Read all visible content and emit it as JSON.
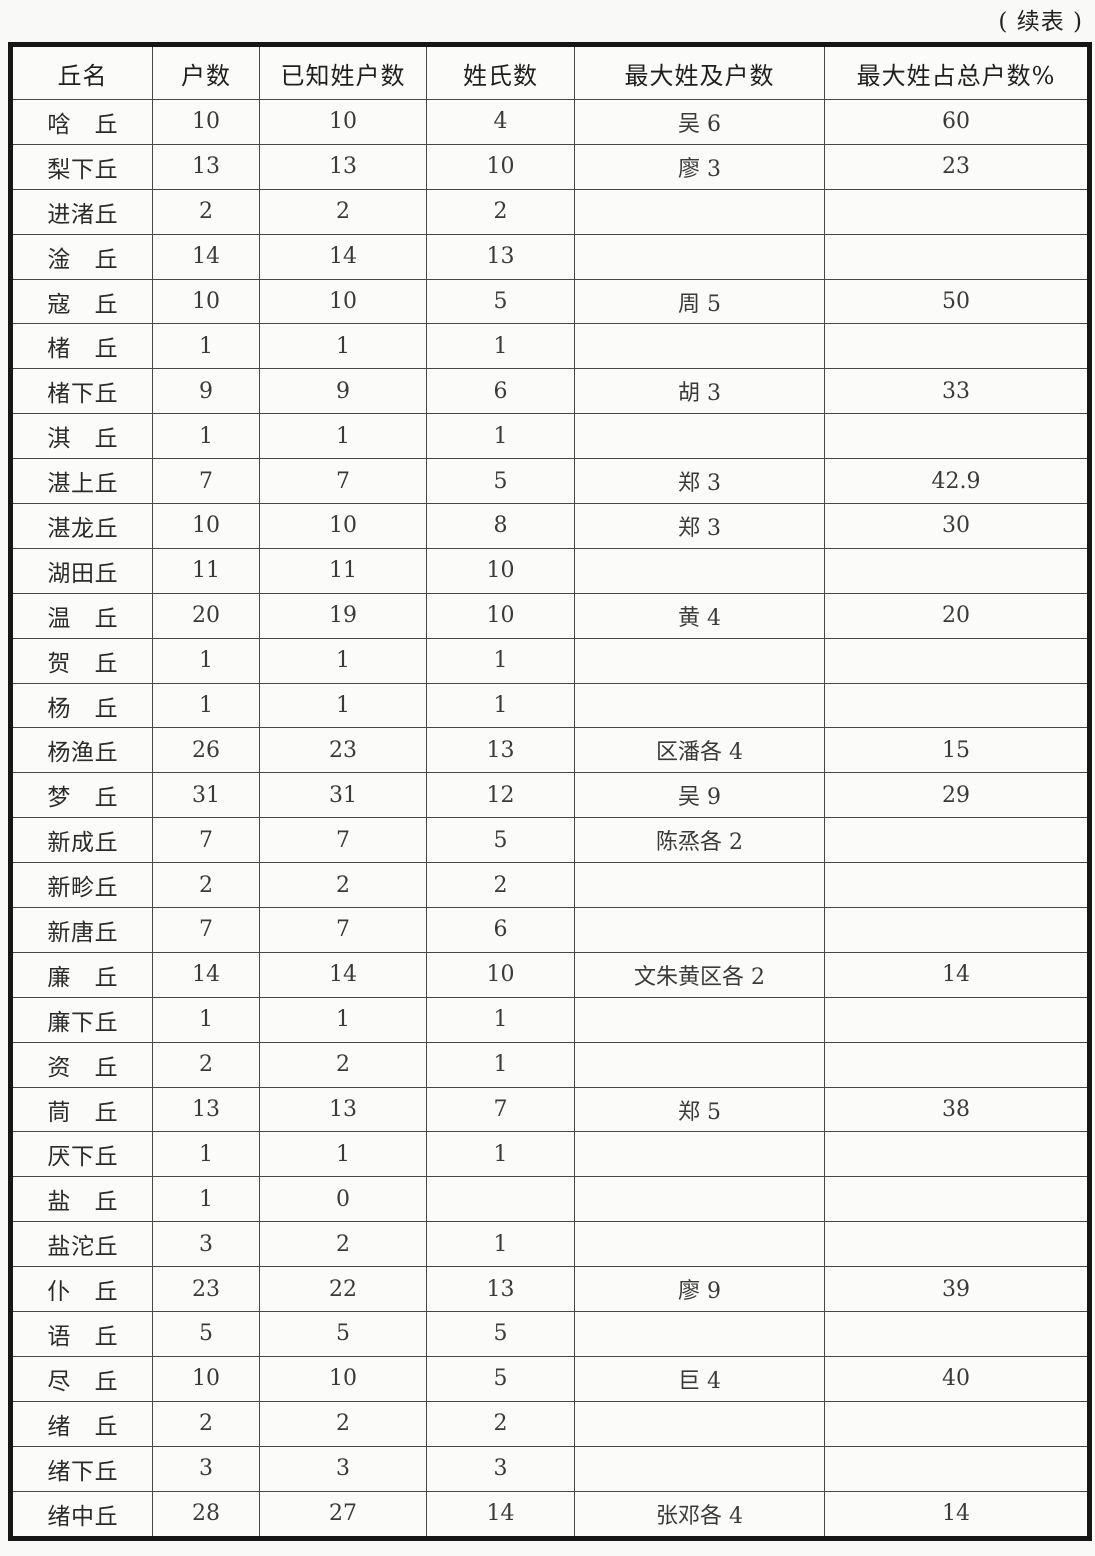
{
  "page": {
    "continuation_label": "( 续表 )"
  },
  "table": {
    "columns": [
      "丘名",
      "户数",
      "已知姓户数",
      "姓氏数",
      "最大姓及户数",
      "最大姓占总户数%"
    ],
    "rows": [
      [
        "唅丘",
        "10",
        "10",
        "4",
        "吴 6",
        "60"
      ],
      [
        "梨下丘",
        "13",
        "13",
        "10",
        "廖 3",
        "23"
      ],
      [
        "进渚丘",
        "2",
        "2",
        "2",
        "",
        ""
      ],
      [
        "淦丘",
        "14",
        "14",
        "13",
        "",
        ""
      ],
      [
        "寇丘",
        "10",
        "10",
        "5",
        "周 5",
        "50"
      ],
      [
        "楮丘",
        "1",
        "1",
        "1",
        "",
        ""
      ],
      [
        "楮下丘",
        "9",
        "9",
        "6",
        "胡 3",
        "33"
      ],
      [
        "淇丘",
        "1",
        "1",
        "1",
        "",
        ""
      ],
      [
        "湛上丘",
        "7",
        "7",
        "5",
        "郑 3",
        "42.9"
      ],
      [
        "湛龙丘",
        "10",
        "10",
        "8",
        "郑 3",
        "30"
      ],
      [
        "湖田丘",
        "11",
        "11",
        "10",
        "",
        ""
      ],
      [
        "温丘",
        "20",
        "19",
        "10",
        "黄 4",
        "20"
      ],
      [
        "贺丘",
        "1",
        "1",
        "1",
        "",
        ""
      ],
      [
        "杨丘",
        "1",
        "1",
        "1",
        "",
        ""
      ],
      [
        "杨渔丘",
        "26",
        "23",
        "13",
        "区潘各 4",
        "15"
      ],
      [
        "梦丘",
        "31",
        "31",
        "12",
        "吴 9",
        "29"
      ],
      [
        "新成丘",
        "7",
        "7",
        "5",
        "陈烝各 2",
        ""
      ],
      [
        "新畛丘",
        "2",
        "2",
        "2",
        "",
        ""
      ],
      [
        "新唐丘",
        "7",
        "7",
        "6",
        "",
        ""
      ],
      [
        "廉丘",
        "14",
        "14",
        "10",
        "文朱黄区各 2",
        "14"
      ],
      [
        "廉下丘",
        "1",
        "1",
        "1",
        "",
        ""
      ],
      [
        "资丘",
        "2",
        "2",
        "1",
        "",
        ""
      ],
      [
        "茼丘",
        "13",
        "13",
        "7",
        "郑 5",
        "38"
      ],
      [
        "厌下丘",
        "1",
        "1",
        "1",
        "",
        ""
      ],
      [
        "盐丘",
        "1",
        "0",
        "",
        "",
        ""
      ],
      [
        "盐沱丘",
        "3",
        "2",
        "1",
        "",
        ""
      ],
      [
        "仆丘",
        "23",
        "22",
        "13",
        "廖 9",
        "39"
      ],
      [
        "语丘",
        "5",
        "5",
        "5",
        "",
        ""
      ],
      [
        "尽丘",
        "10",
        "10",
        "5",
        "巨 4",
        "40"
      ],
      [
        "绪丘",
        "2",
        "2",
        "2",
        "",
        ""
      ],
      [
        "绪下丘",
        "3",
        "3",
        "3",
        "",
        ""
      ],
      [
        "绪中丘",
        "28",
        "27",
        "14",
        "张邓各 4",
        "14"
      ]
    ]
  }
}
